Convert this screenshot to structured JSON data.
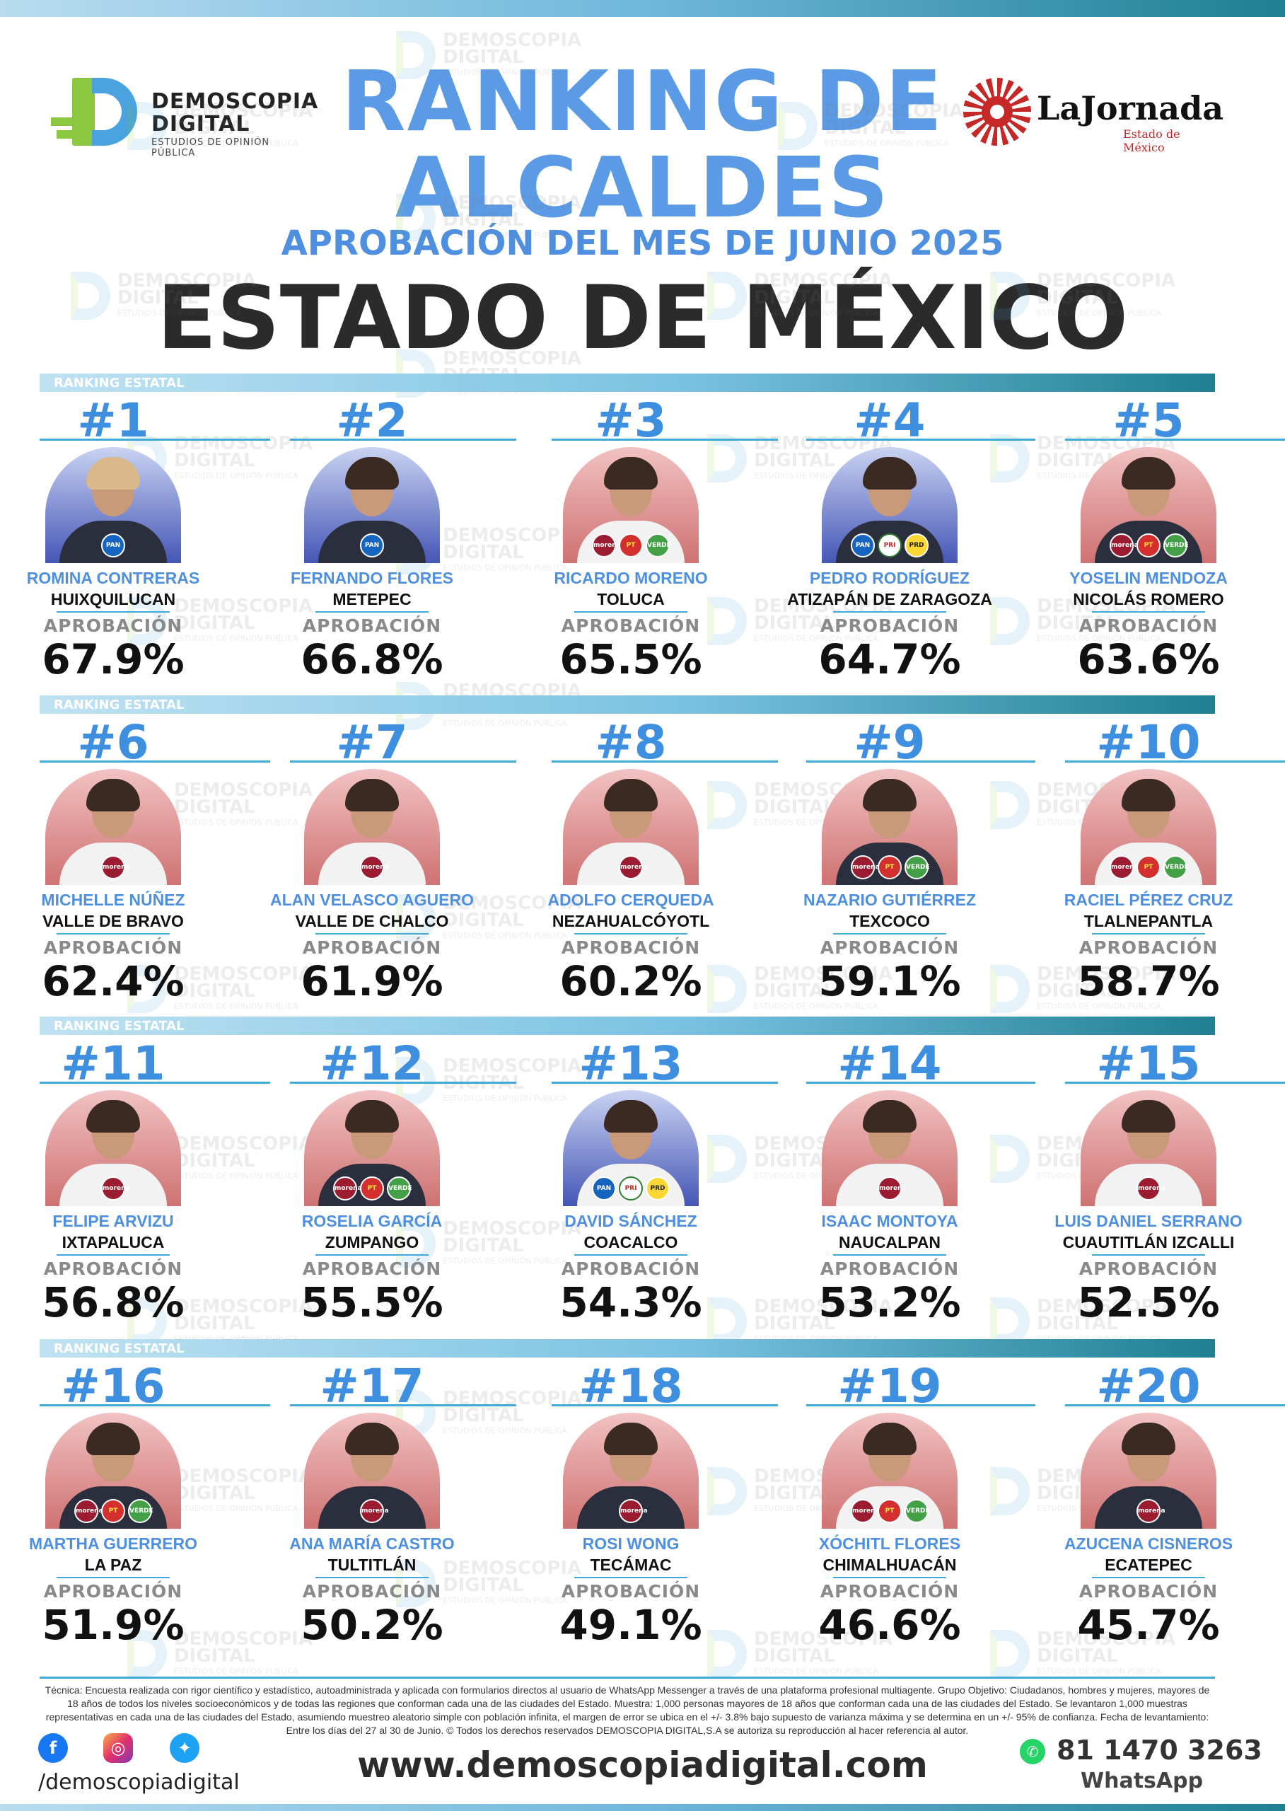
{
  "header": {
    "logo_left": {
      "line1": "DEMOSCOPIA",
      "line2": "DIGITAL",
      "tagline": "ESTUDIOS DE OPINIÓN PÚBLICA"
    },
    "logo_right": {
      "brand": "LaJornada",
      "sub": "Estado de México"
    },
    "title_line1": "RANKING DE",
    "title_line2": "ALCALDES",
    "subtitle": "APROBACIÓN DEL MES DE JUNIO 2025",
    "state": "ESTADO DE MÉXICO"
  },
  "section_label": "RANKING ESTATAL",
  "approval_label": "APROBACIÓN",
  "colors": {
    "accent_blue": "#4f8fe0",
    "line_blue": "#3fa9d9",
    "teal": "#1f7f93",
    "morena": "#9b1b30",
    "pan": "#1565c0"
  },
  "mayors": [
    {
      "rank": "#1",
      "name": "ROMINA CONTRERAS",
      "city": "HUIXQUILUCAN",
      "approval": "67.9%",
      "bg": "blue",
      "parties": [
        "PAN"
      ]
    },
    {
      "rank": "#2",
      "name": "FERNANDO FLORES",
      "city": "METEPEC",
      "approval": "66.8%",
      "bg": "blue",
      "parties": [
        "PAN"
      ]
    },
    {
      "rank": "#3",
      "name": "RICARDO MORENO",
      "city": "TOLUCA",
      "approval": "65.5%",
      "bg": "red",
      "parties": [
        "MORENA",
        "PT",
        "VERDE"
      ]
    },
    {
      "rank": "#4",
      "name": "PEDRO RODRÍGUEZ",
      "city": "ATIZAPÁN DE ZARAGOZA",
      "approval": "64.7%",
      "bg": "blue",
      "parties": [
        "PAN",
        "PRI",
        "PRD"
      ]
    },
    {
      "rank": "#5",
      "name": "YOSELIN MENDOZA",
      "city": "NICOLÁS ROMERO",
      "approval": "63.6%",
      "bg": "red",
      "parties": [
        "MORENA",
        "PT",
        "VERDE"
      ]
    },
    {
      "rank": "#6",
      "name": "MICHELLE NÚÑEZ",
      "city": "VALLE DE BRAVO",
      "approval": "62.4%",
      "bg": "red",
      "parties": [
        "MORENA"
      ]
    },
    {
      "rank": "#7",
      "name": "ALAN VELASCO AGUERO",
      "city": "VALLE DE CHALCO",
      "approval": "61.9%",
      "bg": "red",
      "parties": [
        "MORENA"
      ]
    },
    {
      "rank": "#8",
      "name": "ADOLFO CERQUEDA",
      "city": "NEZAHUALCÓYOTL",
      "approval": "60.2%",
      "bg": "red",
      "parties": [
        "MORENA"
      ]
    },
    {
      "rank": "#9",
      "name": "NAZARIO GUTIÉRREZ",
      "city": "TEXCOCO",
      "approval": "59.1%",
      "bg": "red",
      "parties": [
        "MORENA",
        "PT",
        "VERDE"
      ]
    },
    {
      "rank": "#10",
      "name": "RACIEL PÉREZ CRUZ",
      "city": "TLALNEPANTLA",
      "approval": "58.7%",
      "bg": "red",
      "parties": [
        "MORENA",
        "PT",
        "VERDE"
      ]
    },
    {
      "rank": "#11",
      "name": "FELIPE ARVIZU",
      "city": "IXTAPALUCA",
      "approval": "56.8%",
      "bg": "red",
      "parties": [
        "MORENA"
      ]
    },
    {
      "rank": "#12",
      "name": "ROSELIA GARCÍA",
      "city": "ZUMPANGO",
      "approval": "55.5%",
      "bg": "red",
      "parties": [
        "MORENA",
        "PT",
        "VERDE"
      ]
    },
    {
      "rank": "#13",
      "name": "DAVID SÁNCHEZ",
      "city": "COACALCO",
      "approval": "54.3%",
      "bg": "blue",
      "parties": [
        "PAN",
        "PRI",
        "PRD"
      ]
    },
    {
      "rank": "#14",
      "name": "ISAAC MONTOYA",
      "city": "NAUCALPAN",
      "approval": "53.2%",
      "bg": "red",
      "parties": [
        "MORENA"
      ]
    },
    {
      "rank": "#15",
      "name": "LUIS DANIEL SERRANO",
      "city": "CUAUTITLÁN IZCALLI",
      "approval": "52.5%",
      "bg": "red",
      "parties": [
        "MORENA"
      ]
    },
    {
      "rank": "#16",
      "name": "MARTHA GUERRERO",
      "city": "LA PAZ",
      "approval": "51.9%",
      "bg": "red",
      "parties": [
        "MORENA",
        "PT",
        "VERDE"
      ]
    },
    {
      "rank": "#17",
      "name": "ANA MARÍA CASTRO",
      "city": "TULTITLÁN",
      "approval": "50.2%",
      "bg": "red",
      "parties": [
        "MORENA"
      ]
    },
    {
      "rank": "#18",
      "name": "ROSI WONG",
      "city": "TECÁMAC",
      "approval": "49.1%",
      "bg": "red",
      "parties": [
        "MORENA"
      ]
    },
    {
      "rank": "#19",
      "name": "XÓCHITL FLORES",
      "city": "CHIMALHUACÁN",
      "approval": "46.6%",
      "bg": "red",
      "parties": [
        "MORENA",
        "PT",
        "VERDE"
      ]
    },
    {
      "rank": "#20",
      "name": "AZUCENA CISNEROS",
      "city": "ECATEPEC",
      "approval": "45.7%",
      "bg": "red",
      "parties": [
        "MORENA"
      ]
    }
  ],
  "footer": {
    "methodology": "Técnica: Encuesta realizada con rigor científico y estadístico, autoadministrada y aplicada con formularios directos al usuario de WhatsApp Messenger a través de una plataforma profesional multiagente. Grupo Objetivo: Ciudadanos, hombres y mujeres, mayores de 18 años de todos los niveles socioeconómicos y de todas las regiones que conforman cada una de las ciudades del Estado. Muestra: 1,000 personas mayores de 18 años que conforman cada una de las ciudades del Estado. Se levantaron 1,000 muestras representativas en cada una de las ciudades del Estado, asumiendo muestreo aleatorio simple con población infinita, el margen de error se ubica en el +/- 3.8% bajo supuesto de varianza máxima y se determina en un +/- 95% de confianza. Fecha de levantamiento: Entre los días del 27 al 30 de Junio. © Todos los derechos reservados DEMOSCOPIA DIGITAL,S.A se autoriza su reproducción al hacer referencia al autor.",
    "social_handle": "/demoscopiadigital",
    "website": "www.demoscopiadigital.com",
    "phone": "81 1470 3263",
    "whatsapp_label": "WhatsApp",
    "icons": [
      "facebook-icon",
      "instagram-icon",
      "twitter-icon",
      "whatsapp-icon"
    ]
  }
}
